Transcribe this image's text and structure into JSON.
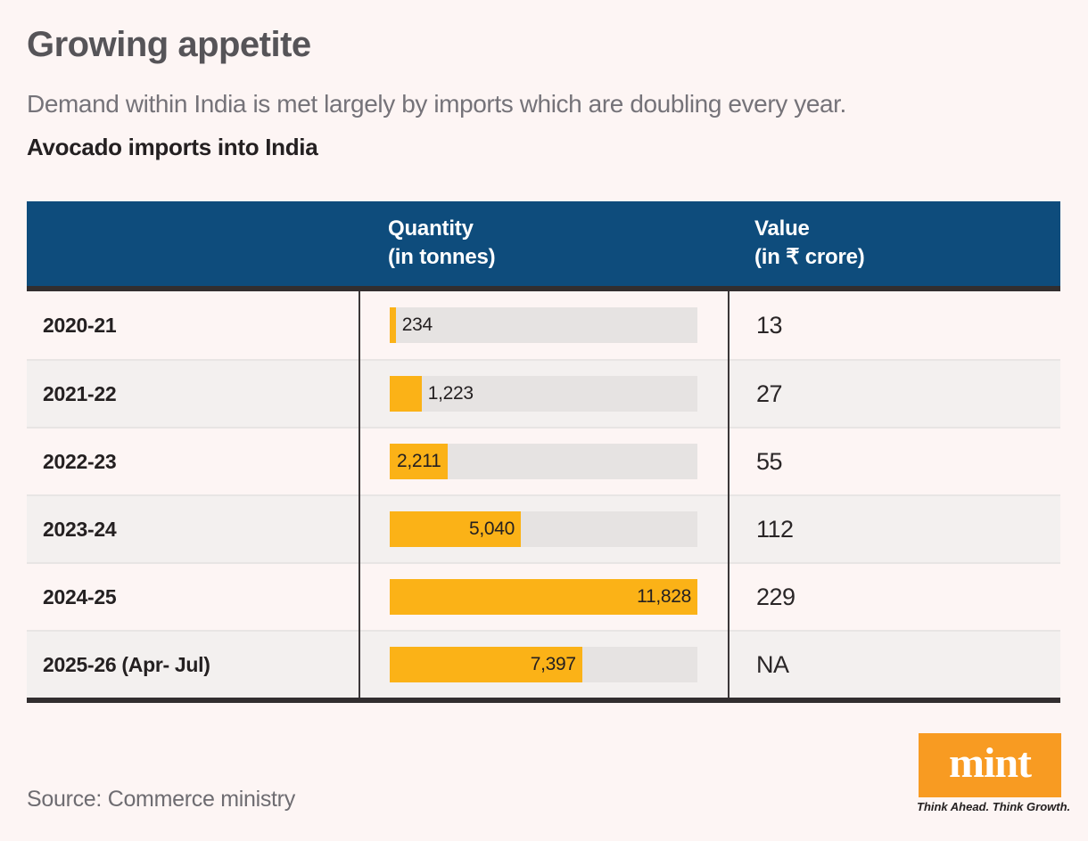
{
  "header": {
    "title": "Growing appetite",
    "subtitle": "Demand within India is met largely by imports which are doubling every year.",
    "chart_heading": "Avocado imports into India"
  },
  "table": {
    "columns": [
      {
        "label_line1": "Quantity",
        "label_line2": "(in tonnes)"
      },
      {
        "label_line1": "Value",
        "label_line2": "(in ₹ crore)"
      }
    ]
  },
  "chart_data": {
    "type": "bar",
    "orientation": "horizontal",
    "title": "Avocado imports into India",
    "categories": [
      "2020-21",
      "2021-22",
      "2022-23",
      "2023-24",
      "2024-25",
      "2025-26 (Apr- Jul)"
    ],
    "series": [
      {
        "name": "Quantity (in tonnes)",
        "values": [
          234,
          1223,
          2211,
          5040,
          11828,
          7397
        ],
        "value_labels": [
          "234",
          "1,223",
          "2,211",
          "5,040",
          "11,828",
          "7,397"
        ]
      },
      {
        "name": "Value (in ₹ crore)",
        "values": [
          13,
          27,
          55,
          112,
          229,
          null
        ],
        "value_labels": [
          "13",
          "27",
          "55",
          "112",
          "229",
          "NA"
        ]
      }
    ],
    "xmax": 11828,
    "layout": {
      "label_inside": [
        false,
        false,
        true,
        true,
        true,
        true
      ],
      "bar_color": "#FBB217",
      "track_color": "#E6E3E2",
      "header_bg": "#0E4C7C",
      "grid": false,
      "legend": false
    }
  },
  "footer": {
    "source": "Source: Commerce ministry"
  },
  "logo": {
    "wordmark": "mint",
    "tagline": "Think Ahead. Think Growth.",
    "bg_color": "#F89B22"
  },
  "colors": {
    "page_bg": "#FDF5F4",
    "header_blue": "#0E4C7C",
    "bar_yellow": "#FBB217",
    "logo_orange": "#F89B22",
    "alt_row": "#F3F0EF",
    "dark_border": "#322E2F"
  }
}
